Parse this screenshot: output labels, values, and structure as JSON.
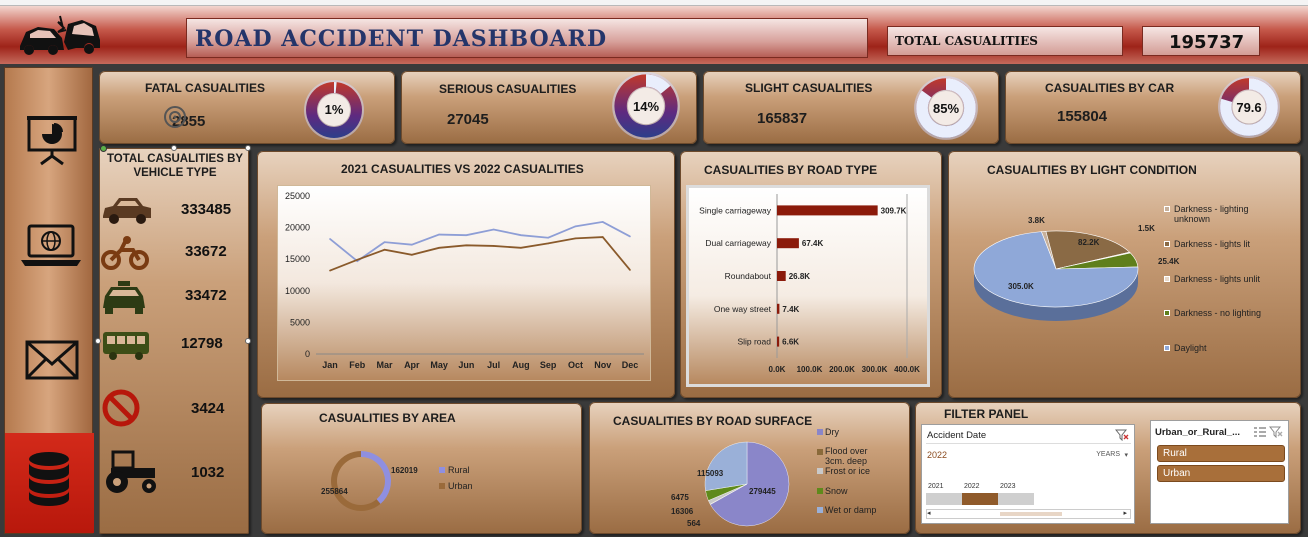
{
  "header": {
    "title": "ROAD ACCIDENT DASHBOARD",
    "total_label": "TOTAL CASUALITIES",
    "total_value": "195737"
  },
  "sidebar": {
    "icons": [
      "presentation-chart-icon",
      "laptop-globe-icon",
      "mail-icon",
      "database-icon"
    ]
  },
  "kpis": [
    {
      "title": "FATAL CASUALITIES",
      "value": "2855",
      "percent_label": "1%",
      "percent": 0.015
    },
    {
      "title": "SERIOUS CASUALITIES",
      "value": "27045",
      "percent_label": "14%",
      "percent": 0.14
    },
    {
      "title": "SLIGHT CASUALITIES",
      "value": "165837",
      "percent_label": "85%",
      "percent": 0.85
    },
    {
      "title": "CASUALITIES BY CAR",
      "value": "155804",
      "percent_label": "79.6",
      "percent": 0.796
    }
  ],
  "vehicle": {
    "title": "TOTAL CASUALITIES BY VEHICLE TYPE",
    "rows": [
      {
        "icon": "car-icon",
        "value": "333485"
      },
      {
        "icon": "motorcycle-icon",
        "value": "33672"
      },
      {
        "icon": "taxi-icon",
        "value": "33472"
      },
      {
        "icon": "bus-icon",
        "value": "12798"
      },
      {
        "icon": "no-entry-icon",
        "value": "3424"
      },
      {
        "icon": "tractor-icon",
        "value": "1032"
      }
    ]
  },
  "line_chart": {
    "title": "2021 CASUALITIES VS 2022 CASUALITIES",
    "y_ticks": [
      "25000",
      "20000",
      "15000",
      "10000",
      "5000",
      "0"
    ],
    "months": [
      "Jan",
      "Feb",
      "Mar",
      "Apr",
      "May",
      "Jun",
      "Jul",
      "Aug",
      "Sep",
      "Oct",
      "Nov",
      "Dec"
    ]
  },
  "road_type": {
    "title": "CASUALITIES  BY ROAD TYPE",
    "x_ticks": [
      "0.0K",
      "100.0K",
      "200.0K",
      "300.0K",
      "400.0K"
    ]
  },
  "light": {
    "title": "CASUALITIES  BY LIGHT CONDITION",
    "legend": [
      "Darkness - lighting unknown",
      "Darkness - lights lit",
      "Darkness - lights unlit",
      "Darkness - no lighting",
      "Daylight"
    ],
    "slice_labels": [
      "3.8K",
      "82.2K",
      "1.5K",
      "25.4K",
      "305.0K"
    ]
  },
  "area": {
    "title": "CASUALITIES  BY AREA",
    "legend": [
      "Rural",
      "Urban"
    ],
    "labels": [
      "162019",
      "255864"
    ]
  },
  "surface": {
    "title": "CASUALITIES BY ROAD SURFACE",
    "legend": [
      "Dry",
      "Flood over 3cm. deep",
      "Frost or ice",
      "Snow",
      "Wet or damp"
    ],
    "labels": [
      "279445",
      "115093",
      "6475",
      "16306",
      "564"
    ]
  },
  "filter": {
    "title": "FILTER  PANEL",
    "date_slicer": {
      "title": "Accident Date",
      "selection": "2022",
      "level": "YEARS",
      "years": [
        "2021",
        "2022",
        "2023"
      ]
    },
    "area_slicer": {
      "title": "Urban_or_Rural_...",
      "items": [
        "Rural",
        "Urban"
      ]
    }
  },
  "chart_data": [
    {
      "type": "line",
      "title": "2021 CASUALITIES VS 2022 CASUALITIES",
      "categories": [
        "Jan",
        "Feb",
        "Mar",
        "Apr",
        "May",
        "Jun",
        "Jul",
        "Aug",
        "Sep",
        "Oct",
        "Nov",
        "Dec"
      ],
      "series": [
        {
          "values": [
            18200,
            14700,
            17700,
            17300,
            18900,
            18800,
            19700,
            18800,
            18400,
            20200,
            20900,
            18600
          ],
          "color": "#8e9ed6"
        },
        {
          "values": [
            13200,
            14900,
            16500,
            15700,
            16800,
            17200,
            17100,
            16800,
            17500,
            18300,
            18500,
            13300
          ],
          "color": "#8a5a2b"
        }
      ],
      "ylim": [
        0,
        25000
      ]
    },
    {
      "type": "bar",
      "title": "CASUALITIES  BY ROAD TYPE",
      "orientation": "horizontal",
      "categories": [
        "Single carriageway",
        "Dual carriageway",
        "Roundabout",
        "One way street",
        "Slip road"
      ],
      "values": [
        309.7,
        67.4,
        26.8,
        7.4,
        6.6
      ],
      "data_labels": [
        "309.7K",
        "67.4K",
        "26.8K",
        "7.4K",
        "6.6K"
      ],
      "xlim": [
        0,
        400
      ],
      "color": "#8b1a0a"
    },
    {
      "type": "pie",
      "title": "CASUALITIES  BY LIGHT CONDITION",
      "categories": [
        "Darkness - lighting unknown",
        "Darkness - lights lit",
        "Darkness - lights unlit",
        "Darkness - no lighting",
        "Daylight"
      ],
      "values": [
        3.8,
        82.2,
        1.5,
        25.4,
        305.0
      ],
      "colors": [
        "#c7b09a",
        "#8a6a45",
        "#e8d8c8",
        "#5f7f1b",
        "#8fa8d8"
      ]
    },
    {
      "type": "pie",
      "title": "CASUALITIES  BY AREA",
      "categories": [
        "Rural",
        "Urban"
      ],
      "values": [
        162019,
        255864
      ],
      "colors": [
        "#8f8fe0",
        "#9a6a3a"
      ]
    },
    {
      "type": "pie",
      "title": "CASUALITIES BY ROAD SURFACE",
      "categories": [
        "Dry",
        "Flood over 3cm. deep",
        "Frost or ice",
        "Snow",
        "Wet or damp"
      ],
      "values": [
        279445,
        564,
        6475,
        16306,
        115093
      ],
      "colors": [
        "#8a86c9",
        "#8a6a3a",
        "#c9c9c9",
        "#5f8a1b",
        "#9ab0d8"
      ]
    }
  ]
}
